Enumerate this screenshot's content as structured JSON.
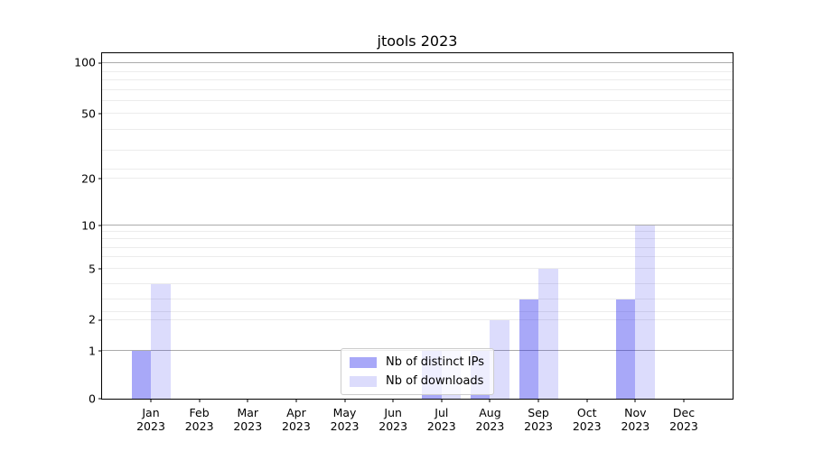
{
  "figure": {
    "background": "#ffffff"
  },
  "chart_data": {
    "type": "bar",
    "title": "jtools 2023",
    "categories": [
      "Jan",
      "Feb",
      "Mar",
      "Apr",
      "May",
      "Jun",
      "Jul",
      "Aug",
      "Sep",
      "Oct",
      "Nov",
      "Dec"
    ],
    "category_year": "2023",
    "series": [
      {
        "name": "Nb of distinct IPs",
        "color": "rgba(20,20,235,0.37)",
        "values": [
          1,
          0,
          0,
          0,
          0,
          0,
          1,
          1,
          3,
          0,
          3,
          0
        ]
      },
      {
        "name": "Nb of downloads",
        "color": "rgba(20,20,235,0.15)",
        "values": [
          4,
          0,
          0,
          0,
          0,
          0,
          1,
          2,
          5,
          0,
          10,
          0
        ]
      }
    ],
    "y_ticks": [
      0,
      1,
      2,
      5,
      10,
      20,
      50,
      100
    ],
    "ylim": [
      0,
      110
    ],
    "xlabel": "",
    "ylabel": "",
    "grid": {
      "horizontal": true,
      "log_minor_lines": true,
      "decade_lines_darker": true
    },
    "legend": {
      "position": "lower center"
    }
  },
  "colors": {
    "bar_distinct_ips": "rgba(20,20,235,0.37)",
    "bar_downloads": "rgba(20,20,235,0.15)",
    "grid_decade": "#ababab",
    "grid_minor": "#ececec",
    "spine": "#000000",
    "text": "#000000",
    "legend_border": "#cccccc"
  }
}
